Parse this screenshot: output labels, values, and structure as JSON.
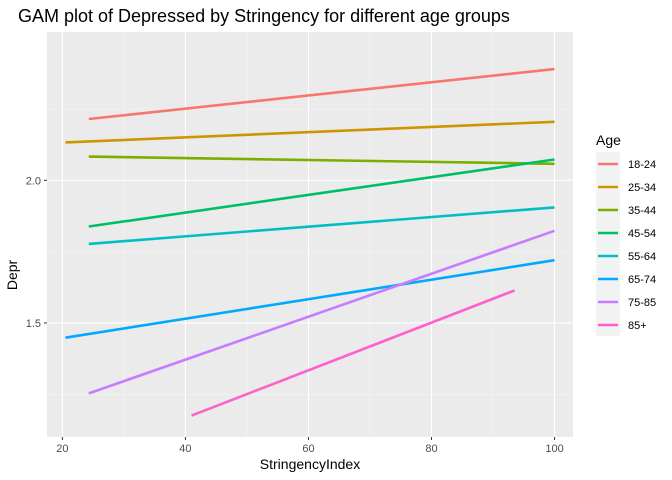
{
  "chart_data": {
    "type": "line",
    "title": "GAM plot of Depressed by Stringency for different age groups",
    "xlabel": "StringencyIndex",
    "ylabel": "Depr",
    "xlim": [
      17.5,
      103
    ],
    "ylim": [
      1.1,
      2.52
    ],
    "x_ticks": [
      20,
      40,
      60,
      80,
      100
    ],
    "x_tick_labels": [
      "20",
      "40",
      "60",
      "80",
      "100"
    ],
    "y_ticks": [
      1.5,
      2.0
    ],
    "y_tick_labels": [
      "1.5",
      "2.0"
    ],
    "grid": true,
    "legend_title": "Age",
    "legend_position": "right",
    "series": [
      {
        "name": "18-24",
        "color": "#F8766D",
        "points": [
          [
            24.3,
            2.215
          ],
          [
            100,
            2.39
          ]
        ]
      },
      {
        "name": "25-34",
        "color": "#CD9600",
        "points": [
          [
            20.5,
            2.133
          ],
          [
            100,
            2.205
          ]
        ]
      },
      {
        "name": "35-44",
        "color": "#7CAE00",
        "points": [
          [
            24.3,
            2.083
          ],
          [
            100,
            2.058
          ]
        ]
      },
      {
        "name": "45-54",
        "color": "#00BE67",
        "points": [
          [
            24.3,
            1.838
          ],
          [
            100,
            2.073
          ]
        ]
      },
      {
        "name": "55-64",
        "color": "#00BFC4",
        "points": [
          [
            24.3,
            1.777
          ],
          [
            100,
            1.905
          ]
        ]
      },
      {
        "name": "65-74",
        "color": "#00A9FF",
        "points": [
          [
            20.5,
            1.448
          ],
          [
            100,
            1.72
          ]
        ]
      },
      {
        "name": "75-85",
        "color": "#C77CFF",
        "points": [
          [
            24.3,
            1.253
          ],
          [
            100,
            1.823
          ]
        ]
      },
      {
        "name": "85+",
        "color": "#FF61CC",
        "points": [
          [
            41,
            1.175
          ],
          [
            93.5,
            1.614
          ]
        ]
      }
    ]
  }
}
